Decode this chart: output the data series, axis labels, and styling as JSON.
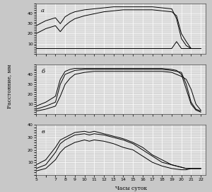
{
  "title_a": "а",
  "title_b": "б",
  "title_c": "в",
  "xlabel": "Часы суток",
  "ylabel": "Расстояние, мм",
  "xticks": [
    5,
    7,
    8,
    9,
    10,
    11,
    12,
    13,
    14,
    15,
    16,
    17,
    18,
    19,
    20,
    21,
    22
  ],
  "xtick_labels": [
    "5",
    "7",
    "8",
    "9",
    "10",
    "11",
    "12",
    "13",
    "14",
    "15",
    "16",
    "17",
    "18",
    "19",
    "20",
    "21",
    "22"
  ],
  "xlim": [
    5,
    22.5
  ],
  "panel_a": {
    "ylim": [
      0,
      50
    ],
    "yticks": [
      10,
      20,
      30,
      40
    ],
    "line1": [
      [
        5,
        5
      ],
      [
        6,
        5
      ],
      [
        7,
        5
      ],
      [
        8,
        5
      ],
      [
        9,
        5
      ],
      [
        10,
        5
      ],
      [
        11,
        5
      ],
      [
        12,
        5
      ],
      [
        13,
        5
      ],
      [
        14,
        5
      ],
      [
        15,
        5
      ],
      [
        16,
        5
      ],
      [
        17,
        5
      ],
      [
        18,
        5
      ],
      [
        19,
        5
      ],
      [
        19.5,
        12
      ],
      [
        20,
        5
      ],
      [
        21,
        5
      ],
      [
        22,
        5
      ]
    ],
    "line2": [
      [
        5,
        20
      ],
      [
        6,
        25
      ],
      [
        7,
        28
      ],
      [
        7.5,
        22
      ],
      [
        8,
        28
      ],
      [
        8.5,
        32
      ],
      [
        9,
        35
      ],
      [
        10,
        38
      ],
      [
        11,
        40
      ],
      [
        12,
        42
      ],
      [
        13,
        43
      ],
      [
        14,
        44
      ],
      [
        15,
        44
      ],
      [
        16,
        44
      ],
      [
        17,
        44
      ],
      [
        18,
        43
      ],
      [
        19,
        42
      ],
      [
        19.5,
        38
      ],
      [
        20,
        20
      ],
      [
        20.5,
        12
      ],
      [
        21,
        5
      ],
      [
        22,
        5
      ]
    ],
    "line3": [
      [
        5,
        28
      ],
      [
        6,
        33
      ],
      [
        7,
        36
      ],
      [
        7.5,
        30
      ],
      [
        8,
        37
      ],
      [
        8.5,
        40
      ],
      [
        9,
        42
      ],
      [
        10,
        44
      ],
      [
        11,
        45
      ],
      [
        12,
        46
      ],
      [
        13,
        47
      ],
      [
        14,
        47
      ],
      [
        15,
        47
      ],
      [
        16,
        47
      ],
      [
        17,
        47
      ],
      [
        18,
        46
      ],
      [
        19,
        45
      ],
      [
        19.5,
        35
      ],
      [
        20,
        15
      ],
      [
        20.5,
        8
      ],
      [
        21,
        5
      ],
      [
        22,
        5
      ]
    ]
  },
  "panel_b": {
    "ylim": [
      0,
      50
    ],
    "yticks": [
      10,
      20,
      30,
      40
    ],
    "line1": [
      [
        5,
        5
      ],
      [
        6,
        8
      ],
      [
        7,
        12
      ],
      [
        7.5,
        30
      ],
      [
        8,
        40
      ],
      [
        8.5,
        42
      ],
      [
        9,
        44
      ],
      [
        10,
        45
      ],
      [
        11,
        45
      ],
      [
        12,
        45
      ],
      [
        13,
        45
      ],
      [
        14,
        45
      ],
      [
        15,
        45
      ],
      [
        16,
        45
      ],
      [
        17,
        45
      ],
      [
        18,
        45
      ],
      [
        19,
        44
      ],
      [
        19.5,
        43
      ],
      [
        20,
        42
      ],
      [
        20.5,
        30
      ],
      [
        21,
        12
      ],
      [
        21.5,
        5
      ],
      [
        22,
        3
      ]
    ],
    "line2": [
      [
        5,
        8
      ],
      [
        6,
        12
      ],
      [
        7,
        18
      ],
      [
        7.5,
        35
      ],
      [
        8,
        43
      ],
      [
        8.5,
        45
      ],
      [
        9,
        46
      ],
      [
        10,
        46
      ],
      [
        11,
        46
      ],
      [
        12,
        46
      ],
      [
        13,
        46
      ],
      [
        14,
        46
      ],
      [
        15,
        46
      ],
      [
        16,
        46
      ],
      [
        17,
        46
      ],
      [
        18,
        46
      ],
      [
        19,
        45
      ],
      [
        19.5,
        44
      ],
      [
        20,
        40
      ],
      [
        20.5,
        25
      ],
      [
        21,
        10
      ],
      [
        21.5,
        4
      ],
      [
        22,
        2
      ]
    ],
    "line3": [
      [
        5,
        3
      ],
      [
        6,
        5
      ],
      [
        7,
        8
      ],
      [
        7.5,
        18
      ],
      [
        8,
        30
      ],
      [
        8.5,
        36
      ],
      [
        9,
        40
      ],
      [
        10,
        42
      ],
      [
        11,
        43
      ],
      [
        12,
        43
      ],
      [
        13,
        43
      ],
      [
        14,
        43
      ],
      [
        15,
        43
      ],
      [
        16,
        43
      ],
      [
        17,
        43
      ],
      [
        18,
        43
      ],
      [
        19,
        42
      ],
      [
        19.5,
        40
      ],
      [
        20,
        38
      ],
      [
        20.5,
        35
      ],
      [
        21,
        25
      ],
      [
        21.5,
        10
      ],
      [
        22,
        4
      ]
    ]
  },
  "panel_c": {
    "ylim": [
      0,
      40
    ],
    "yticks": [
      10,
      20,
      30,
      40
    ],
    "line1": [
      [
        5,
        5
      ],
      [
        6,
        8
      ],
      [
        7,
        18
      ],
      [
        7.5,
        25
      ],
      [
        8,
        28
      ],
      [
        8.5,
        30
      ],
      [
        9,
        32
      ],
      [
        10,
        33
      ],
      [
        10.5,
        32
      ],
      [
        11,
        33
      ],
      [
        12,
        32
      ],
      [
        13,
        30
      ],
      [
        14,
        28
      ],
      [
        15,
        25
      ],
      [
        16,
        20
      ],
      [
        17,
        15
      ],
      [
        18,
        10
      ],
      [
        19,
        8
      ],
      [
        20,
        6
      ],
      [
        20.5,
        5
      ],
      [
        21,
        5
      ],
      [
        22,
        5
      ]
    ],
    "line2": [
      [
        5,
        8
      ],
      [
        6,
        12
      ],
      [
        7,
        22
      ],
      [
        7.5,
        28
      ],
      [
        8,
        30
      ],
      [
        8.5,
        32
      ],
      [
        9,
        34
      ],
      [
        10,
        35
      ],
      [
        10.5,
        34
      ],
      [
        11,
        35
      ],
      [
        12,
        33
      ],
      [
        13,
        31
      ],
      [
        14,
        29
      ],
      [
        15,
        26
      ],
      [
        16,
        22
      ],
      [
        17,
        16
      ],
      [
        18,
        12
      ],
      [
        19,
        8
      ],
      [
        20,
        6
      ],
      [
        20.5,
        5
      ],
      [
        21,
        5
      ],
      [
        22,
        5
      ]
    ],
    "line3": [
      [
        5,
        3
      ],
      [
        6,
        5
      ],
      [
        7,
        12
      ],
      [
        7.5,
        18
      ],
      [
        8,
        22
      ],
      [
        8.5,
        24
      ],
      [
        9,
        26
      ],
      [
        10,
        28
      ],
      [
        10.5,
        27
      ],
      [
        11,
        28
      ],
      [
        12,
        27
      ],
      [
        13,
        25
      ],
      [
        14,
        22
      ],
      [
        15,
        20
      ],
      [
        16,
        15
      ],
      [
        17,
        10
      ],
      [
        18,
        7
      ],
      [
        19,
        5
      ],
      [
        20,
        4
      ],
      [
        20.5,
        4
      ],
      [
        21,
        5
      ],
      [
        22,
        5
      ]
    ]
  },
  "bg_color": "#d8d8d8",
  "grid_color": "#ffffff",
  "outer_bg": "#c8c8c8"
}
